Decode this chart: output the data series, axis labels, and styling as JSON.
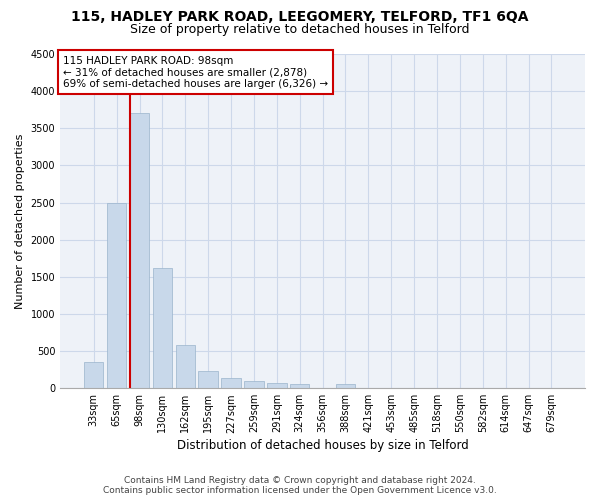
{
  "title_main": "115, HADLEY PARK ROAD, LEEGOMERY, TELFORD, TF1 6QA",
  "title_sub": "Size of property relative to detached houses in Telford",
  "xlabel": "Distribution of detached houses by size in Telford",
  "ylabel": "Number of detached properties",
  "categories": [
    "33sqm",
    "65sqm",
    "98sqm",
    "130sqm",
    "162sqm",
    "195sqm",
    "227sqm",
    "259sqm",
    "291sqm",
    "324sqm",
    "356sqm",
    "388sqm",
    "421sqm",
    "453sqm",
    "485sqm",
    "518sqm",
    "550sqm",
    "582sqm",
    "614sqm",
    "647sqm",
    "679sqm"
  ],
  "values": [
    350,
    2500,
    3700,
    1620,
    580,
    230,
    140,
    100,
    70,
    50,
    0,
    50,
    0,
    0,
    0,
    0,
    0,
    0,
    0,
    0,
    0
  ],
  "bar_color": "#c8d8ea",
  "bar_edge_color": "#9ab4cc",
  "highlight_index": 2,
  "highlight_line_color": "#cc0000",
  "annotation_text": "115 HADLEY PARK ROAD: 98sqm\n← 31% of detached houses are smaller (2,878)\n69% of semi-detached houses are larger (6,326) →",
  "annotation_box_color": "#cc0000",
  "annotation_box_fill": "#ffffff",
  "ylim_max": 4500,
  "yticks": [
    0,
    500,
    1000,
    1500,
    2000,
    2500,
    3000,
    3500,
    4000,
    4500
  ],
  "footnote": "Contains HM Land Registry data © Crown copyright and database right 2024.\nContains public sector information licensed under the Open Government Licence v3.0.",
  "grid_color": "#cdd8ea",
  "background_color": "#eef2f8",
  "title_fontsize": 10,
  "subtitle_fontsize": 9,
  "tick_fontsize": 7,
  "ylabel_fontsize": 8,
  "xlabel_fontsize": 8.5,
  "footnote_fontsize": 6.5,
  "annotation_fontsize": 7.5
}
